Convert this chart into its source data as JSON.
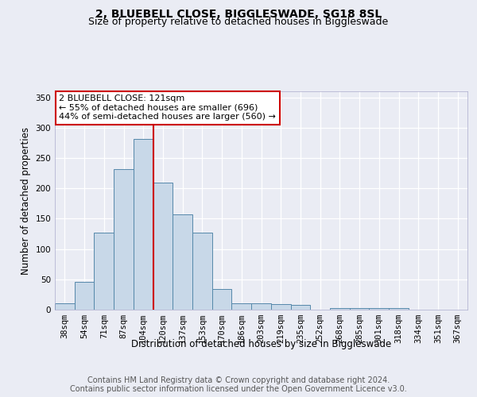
{
  "title_line1": "2, BLUEBELL CLOSE, BIGGLESWADE, SG18 8SL",
  "title_line2": "Size of property relative to detached houses in Biggleswade",
  "xlabel": "Distribution of detached houses by size in Biggleswade",
  "ylabel": "Number of detached properties",
  "categories": [
    "38sqm",
    "54sqm",
    "71sqm",
    "87sqm",
    "104sqm",
    "120sqm",
    "137sqm",
    "153sqm",
    "170sqm",
    "186sqm",
    "203sqm",
    "219sqm",
    "235sqm",
    "252sqm",
    "268sqm",
    "285sqm",
    "301sqm",
    "318sqm",
    "334sqm",
    "351sqm",
    "367sqm"
  ],
  "values": [
    10,
    46,
    127,
    232,
    281,
    210,
    157,
    127,
    34,
    10,
    10,
    9,
    8,
    0,
    3,
    2,
    2,
    2,
    0,
    0,
    0
  ],
  "bar_color": "#c8d8e8",
  "bar_edge_color": "#5588aa",
  "highlight_line_index": 5,
  "highlight_color": "#cc0000",
  "annotation_text": "2 BLUEBELL CLOSE: 121sqm\n← 55% of detached houses are smaller (696)\n44% of semi-detached houses are larger (560) →",
  "annotation_box_color": "#ffffff",
  "annotation_box_edge": "#cc0000",
  "ylim": [
    0,
    360
  ],
  "yticks": [
    0,
    50,
    100,
    150,
    200,
    250,
    300,
    350
  ],
  "footer_line1": "Contains HM Land Registry data © Crown copyright and database right 2024.",
  "footer_line2": "Contains public sector information licensed under the Open Government Licence v3.0.",
  "background_color": "#eaecf4",
  "plot_bg_color": "#eaecf4",
  "grid_color": "#ffffff",
  "title_fontsize": 10,
  "subtitle_fontsize": 9,
  "axis_label_fontsize": 8.5,
  "tick_fontsize": 7.5,
  "annotation_fontsize": 8,
  "footer_fontsize": 7
}
